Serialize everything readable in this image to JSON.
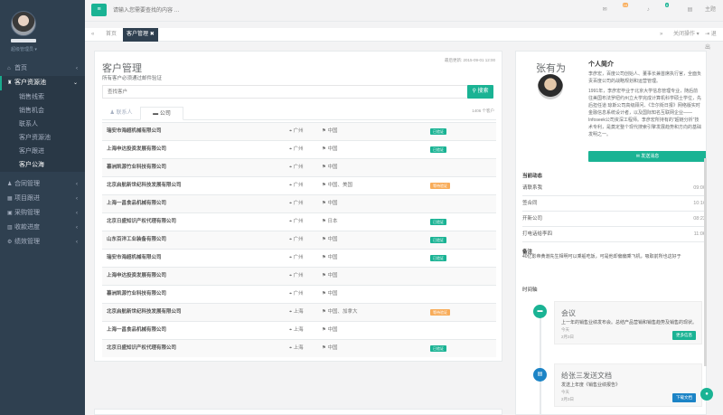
{
  "sidebar": {
    "role": "超级管理员",
    "items": [
      {
        "label": "首页",
        "icon": "home-icon",
        "glyph": "⌂"
      },
      {
        "label": "客户资源池",
        "icon": "users-icon",
        "glyph": "♜"
      },
      {
        "label": "合同管理",
        "icon": "user-icon",
        "glyph": "♟"
      },
      {
        "label": "项目跟进",
        "icon": "calendar-icon",
        "glyph": "▦"
      },
      {
        "label": "采购管理",
        "icon": "cart-icon",
        "glyph": "▣"
      },
      {
        "label": "收款进度",
        "icon": "chart-icon",
        "glyph": "▥"
      },
      {
        "label": "绩效管理",
        "icon": "settings-icon",
        "glyph": "⚙"
      }
    ],
    "subitems": [
      "销售线索",
      "销售机会",
      "联系人",
      "客户资源池",
      "客户跟进",
      "客户公海"
    ]
  },
  "header": {
    "search_placeholder": "请输入您需要查找的内容 …",
    "mail_count": "16",
    "alert_count": "8",
    "theme": "主题"
  },
  "tabs": {
    "home": "首页",
    "current": "客户管理",
    "actions": "关闭操作",
    "back": "退出"
  },
  "main": {
    "title": "客户管理",
    "updated": "最后更新: 2015-09-01 12:00",
    "note": "所有客户必须通过邮件验证",
    "search_placeholder": "查找客户",
    "search_button": "搜索",
    "count": "1406 个客户",
    "tab_contacts": "联系人",
    "tab_company": "公司",
    "rows": [
      {
        "name": "瑞安市海超机械有限公司",
        "city": "广州",
        "country": "中国",
        "status": "已验证",
        "color": "#1ab394"
      },
      {
        "name": "上海申达投资发展有限公司",
        "city": "广州",
        "country": "中国",
        "status": "已验证",
        "color": "#1ab394"
      },
      {
        "name": "暮洲凯源竹业科技有限公司",
        "city": "广州",
        "country": "中国",
        "status": "",
        "color": ""
      },
      {
        "name": "北京启航新世纪科技发展有限公司",
        "city": "广州",
        "country": "中国、美国",
        "status": "等待验证",
        "color": "#f8ac59"
      },
      {
        "name": "上海一昌食品机械有限公司",
        "city": "广州",
        "country": "中国",
        "status": "",
        "color": ""
      },
      {
        "name": "北京日盛知识产权代理有限公司",
        "city": "广州",
        "country": "日本",
        "status": "已验证",
        "color": "#1ab394"
      },
      {
        "name": "山东百洋工业装备有限公司",
        "city": "广州",
        "country": "中国",
        "status": "已验证",
        "color": "#1ab394"
      },
      {
        "name": "瑞安市海超机械有限公司",
        "city": "广州",
        "country": "中国",
        "status": "已验证",
        "color": "#1ab394"
      },
      {
        "name": "上海申达投资发展有限公司",
        "city": "广州",
        "country": "中国",
        "status": "",
        "color": ""
      },
      {
        "name": "暮洲凯源竹业科技有限公司",
        "city": "广州",
        "country": "中国",
        "status": "",
        "color": ""
      },
      {
        "name": "北京启航新世纪科技发展有限公司",
        "city": "上海",
        "country": "中国、加拿大",
        "status": "等待验证",
        "color": "#f8ac59"
      },
      {
        "name": "上海一昌食品机械有限公司",
        "city": "上海",
        "country": "中国",
        "status": "",
        "color": ""
      },
      {
        "name": "北京日盛知识产权代理有限公司",
        "city": "上海",
        "country": "中国",
        "status": "已验证",
        "color": "#1ab394"
      }
    ]
  },
  "profile": {
    "name": "张有为",
    "bio_title": "个人简介",
    "bio1": "李彦宏，百度公司创始人、董事长兼首席执行官，全面负责百度公司的战略规划和运营管理。",
    "bio2": "1991年，李彦宏毕业于北京大学信息管理专业，随后前往美国布法罗纽约州立大学完成计算机科学硕士学位，先后担任道 琼斯公司高级顾问、《华尔街日报》网络版实时金融信息系统设计者，以及国际知名互联网企业——Infoseek公司资深工程师。李彦宏所持有的\"超链分析\"技术专利，是奠定整个现代搜索引擎发展趋势和方向的基础发明之一。",
    "send_button": "发送消息",
    "activity_title": "当前动态",
    "activities": [
      {
        "label": "请联系我",
        "time": "09:00"
      },
      {
        "label": "签合同",
        "time": "10:16"
      },
      {
        "label": "开新公司",
        "time": "08:22"
      },
      {
        "label": "打电话给李四",
        "time": "11:06"
      }
    ],
    "note_title": "备注",
    "note": "40亿影帝黄渤先生相明可以乘船吃饭，可是他却偏偏乘飞机，吸取前所也这好于",
    "timeline_title": "时间轴",
    "timeline": [
      {
        "title": "会议",
        "desc": "上一年的销售业绩发布会。总结产品营销和销售趋势及销售的现状。",
        "day": "今天",
        "date": "2月3日",
        "button": "更多信息",
        "icon": "briefcase-icon",
        "glyph": "▬",
        "color": "#1ab394"
      },
      {
        "title": "给张三发送文档",
        "desc": "发送上年度《销售业绩报告》",
        "day": "今天",
        "date": "2月3日",
        "button": "下载文档",
        "icon": "file-icon",
        "glyph": "▤",
        "color": "#1c84c6"
      }
    ]
  },
  "colors": {
    "accent": "#1ab394",
    "sidebar": "#2f4050",
    "warning": "#f8ac59",
    "info": "#1c84c6"
  }
}
